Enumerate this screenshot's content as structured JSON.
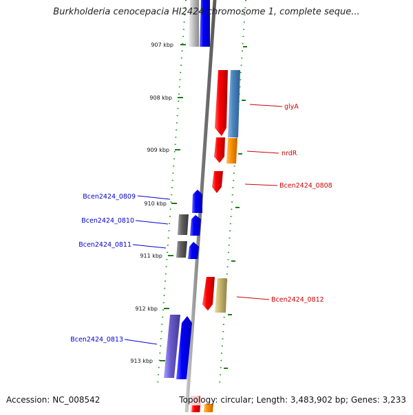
{
  "header": {
    "title": "Burkholderia cenocepacia HI2424 chromosome 1, complete seque..."
  },
  "footer": {
    "accession": "Accession: NC_008542",
    "summary": "Topology: circular; Length: 3,483,902 bp; Genes: 3,233"
  },
  "ticks": [
    "907 kbp",
    "908 kbp",
    "909 kbp",
    "910 kbp",
    "911 kbp",
    "912 kbp",
    "913 kbp"
  ],
  "genes": {
    "forward": [
      {
        "label": "glyA",
        "color": "#cc0000"
      },
      {
        "label": "nrdR",
        "color": "#cc0000"
      },
      {
        "label": "Bcen2424_0808",
        "color": "#cc0000"
      },
      {
        "label": "Bcen2424_0812",
        "color": "#cc0000"
      }
    ],
    "reverse": [
      {
        "label": "Bcen2424_0809",
        "color": "#0000cc"
      },
      {
        "label": "Bcen2424_0810",
        "color": "#0000cc"
      },
      {
        "label": "Bcen2424_0811",
        "color": "#0000cc"
      },
      {
        "label": "Bcen2424_0813",
        "color": "#0000cc"
      }
    ]
  },
  "colors": {
    "backbone": "#888888",
    "tick": "#1a7a1a",
    "forward_gene": "#e8000a",
    "reverse_gene": "#0000ff",
    "gene_context_blue": "#4a86c0",
    "gene_context_orange": "#ff9000",
    "gene_context_khaki": "#c8b870",
    "gene_context_purple": "#6a5acd",
    "gene_context_gray": "#606060"
  }
}
